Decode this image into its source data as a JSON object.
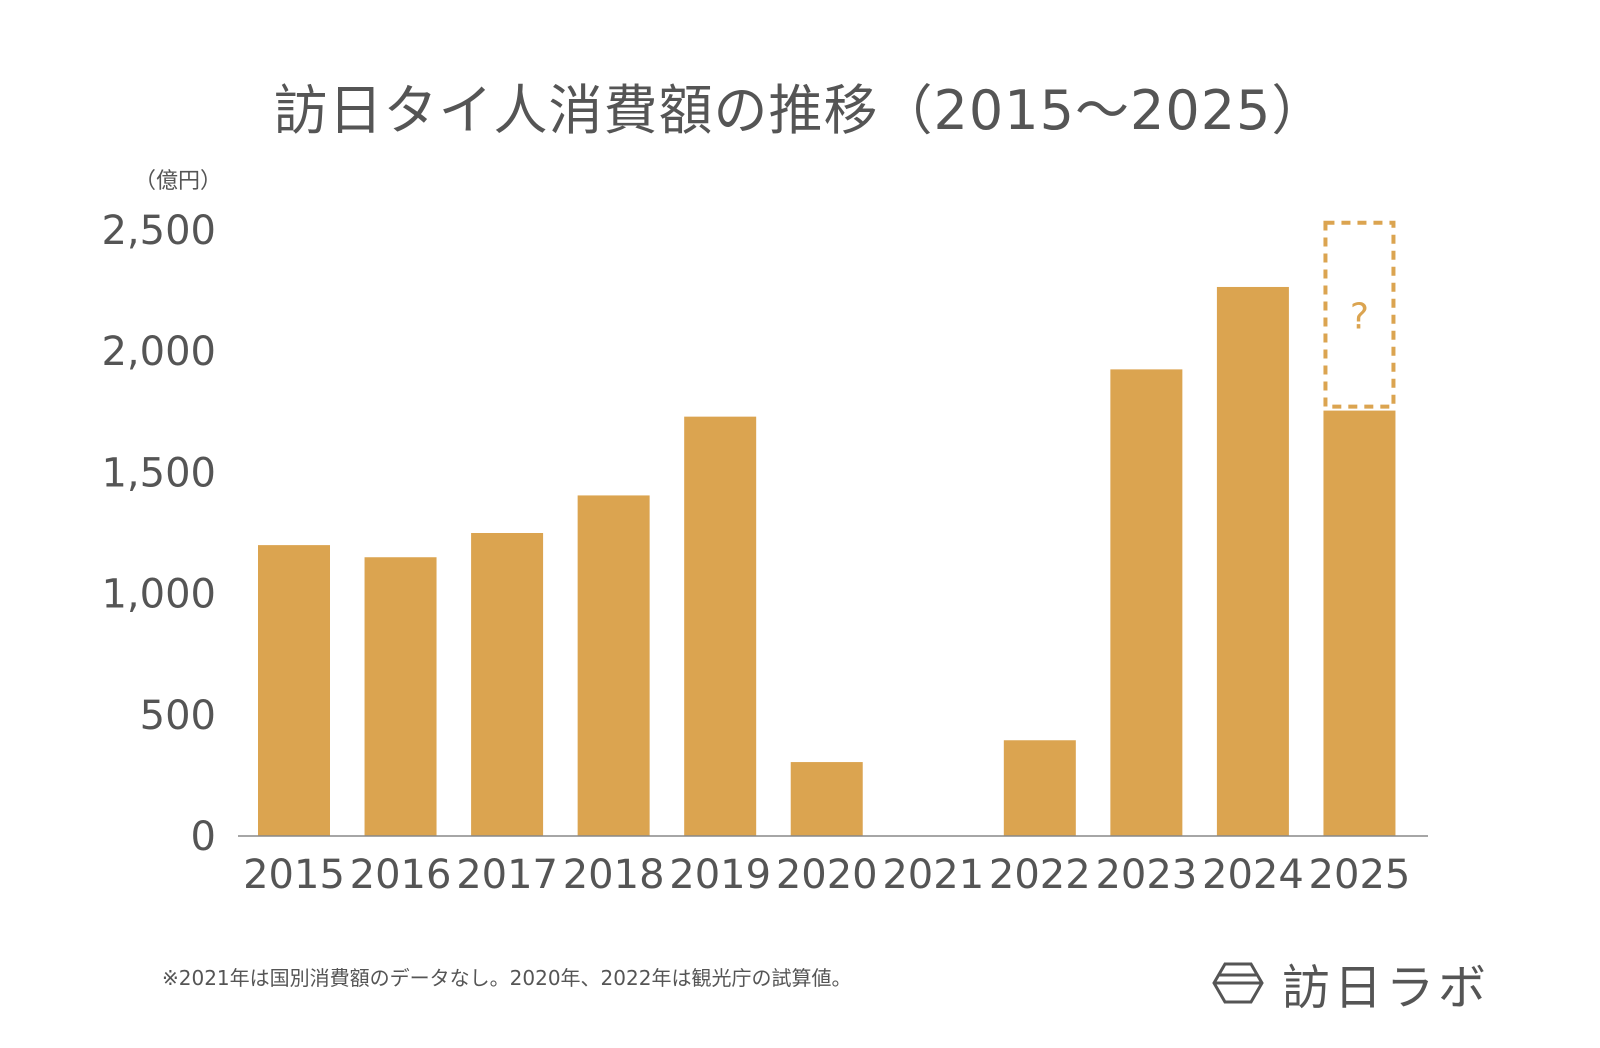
{
  "chart_data": {
    "type": "bar",
    "title": "訪日タイ人消費額の推移（2015〜2025）",
    "ylabel": "（億円）",
    "xlabel": "",
    "ylim": [
      0,
      2500
    ],
    "yticks": [
      0,
      500,
      1000,
      1500,
      2000,
      2500
    ],
    "ytick_labels": [
      "0",
      "500",
      "1,000",
      "1,500",
      "2,000",
      "2,500"
    ],
    "categories": [
      "2015",
      "2016",
      "2017",
      "2018",
      "2019",
      "2020",
      "2021",
      "2022",
      "2023",
      "2024",
      "2025"
    ],
    "values": [
      1200,
      1150,
      1250,
      1405,
      1730,
      305,
      0,
      395,
      1925,
      2265,
      1755
    ],
    "projection": {
      "category": "2025",
      "from": 1755,
      "to": 2530,
      "label": "?"
    },
    "grid": false,
    "bar_color": "#DBA450"
  },
  "footnote": "※2021年は国別消費額のデータなし。2020年、2022年は観光庁の試算値。",
  "brand": {
    "name": "訪日ラボ",
    "icon": "hexagon-logo-icon"
  }
}
